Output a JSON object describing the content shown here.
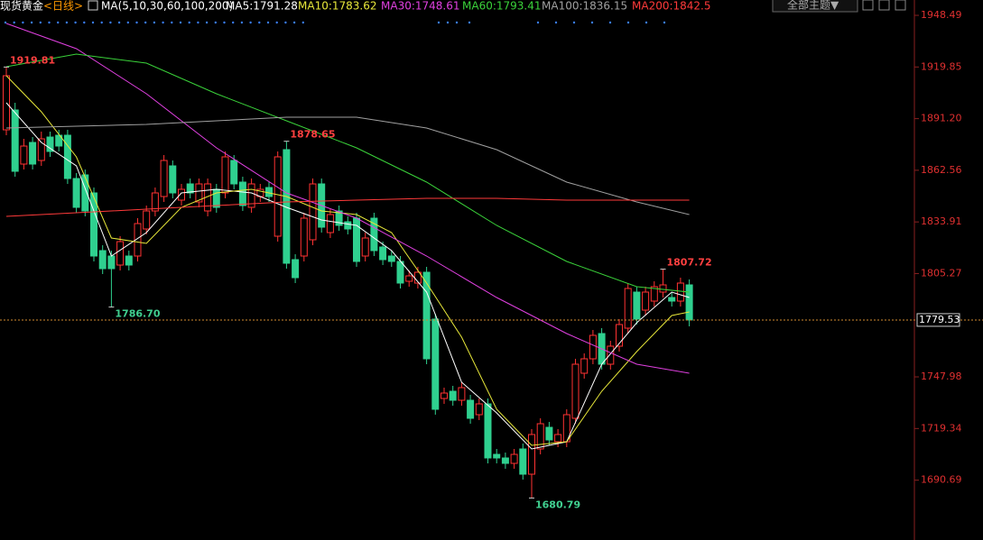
{
  "chart_data": {
    "type": "candlestick",
    "title": "现货黄金",
    "subtitle": "<日线>",
    "indicator": "MA(5,10,30,60,100,200)",
    "theme_button": "全部主题▼",
    "up_color": "#ff3232",
    "down_color": "#2fd08f",
    "ylim": [
      1662,
      1957
    ],
    "yticks": [
      1948.49,
      1919.85,
      {
        "value": 1891.2,
        "label": "1891.20"
      },
      1862.56,
      1833.91,
      1805.27,
      1747.98,
      1719.34,
      1690.69
    ],
    "open": [
      1885,
      1896,
      1866,
      1878,
      1868,
      1881,
      1882,
      1882,
      1858,
      1860,
      1850,
      1818,
      1815,
      1810,
      1815,
      1815,
      1830,
      1840,
      1848,
      1865,
      1846,
      1855,
      1845,
      1840,
      1852,
      1850,
      1868,
      1856,
      1842,
      1848,
      1853,
      1826,
      1874,
      1813,
      1815,
      1824,
      1855,
      1828,
      1840,
      1834,
      1836,
      1815,
      1836,
      1820,
      1815,
      1812,
      1801,
      1800,
      1806,
      1780,
      1736,
      1740,
      1735,
      1735,
      1727,
      1733,
      1705,
      1703,
      1700,
      1708,
      1694,
      1708,
      1720,
      1712,
      1712,
      1725,
      1750,
      1758,
      1772,
      1755,
      1765,
      1775,
      1795,
      1785,
      1790,
      1795,
      1792,
      1790,
      1799
    ],
    "high": [
      1919.81,
      1900,
      1880,
      1881,
      1884,
      1884,
      1885,
      1885,
      1861,
      1863,
      1853,
      1821,
      1818,
      1826,
      1818,
      1836,
      1843,
      1853,
      1871,
      1868,
      1855,
      1858,
      1858,
      1858,
      1855,
      1873,
      1871,
      1859,
      1858,
      1855,
      1856,
      1873,
      1878.65,
      1816,
      1839,
      1858,
      1858,
      1841,
      1843,
      1837,
      1839,
      1828,
      1839,
      1823,
      1818,
      1815,
      1807,
      1809,
      1809,
      1783,
      1742,
      1743,
      1745,
      1738,
      1736,
      1736,
      1708,
      1706,
      1708,
      1711,
      1719,
      1725,
      1723,
      1719,
      1730,
      1758,
      1761,
      1774,
      1775,
      1768,
      1780,
      1800,
      1798,
      1798,
      1801,
      1807.72,
      1795,
      1803,
      1802
    ],
    "low": [
      1882,
      1859,
      1863,
      1863,
      1865,
      1870,
      1873,
      1855,
      1839,
      1837,
      1812,
      1805,
      1786.7,
      1807,
      1807,
      1812,
      1827,
      1837,
      1845,
      1847,
      1843,
      1847,
      1842,
      1837,
      1839,
      1847,
      1852,
      1840,
      1839,
      1845,
      1845,
      1823,
      1808,
      1800,
      1812,
      1821,
      1828,
      1825,
      1829,
      1827,
      1809,
      1812,
      1815,
      1810,
      1809,
      1797,
      1798,
      1797,
      1755,
      1727,
      1733,
      1732,
      1732,
      1722,
      1724,
      1700,
      1700,
      1697,
      1697,
      1691,
      1680.79,
      1705,
      1710,
      1709,
      1709,
      1722,
      1747,
      1755,
      1752,
      1752,
      1762,
      1772,
      1777,
      1782,
      1787,
      1792,
      1787,
      1787,
      1776
    ],
    "close": [
      1915,
      1862,
      1876,
      1866,
      1880,
      1873,
      1876,
      1858,
      1842,
      1840,
      1815,
      1808,
      1808,
      1823,
      1810,
      1833,
      1840,
      1850,
      1868,
      1850,
      1852,
      1850,
      1855,
      1855,
      1842,
      1870,
      1855,
      1843,
      1855,
      1852,
      1848,
      1870,
      1811,
      1803,
      1836,
      1855,
      1831,
      1838,
      1832,
      1830,
      1812,
      1825,
      1818,
      1813,
      1812,
      1800,
      1804,
      1806,
      1758,
      1730,
      1739,
      1735,
      1742,
      1725,
      1733,
      1703,
      1703,
      1700,
      1705,
      1694,
      1716,
      1722,
      1713,
      1716,
      1727,
      1755,
      1758,
      1771,
      1755,
      1765,
      1777,
      1797,
      1780,
      1795,
      1798,
      1799,
      1790,
      1800,
      1779.53
    ],
    "annotations": {
      "values": [
        1919.81,
        1878.65,
        1786.7,
        1680.79,
        1807.72
      ],
      "value_labels": [
        "1919.81",
        "1878.65",
        "1786.70",
        "1680.79",
        "1807.72"
      ]
    },
    "series": [
      {
        "name": "MA5:1791.28",
        "color": "#ffffff",
        "x": [
          0,
          4,
          8,
          12,
          16,
          20,
          24,
          28,
          32,
          36,
          40,
          44,
          48,
          52,
          56,
          60,
          64,
          68,
          72,
          76,
          78
        ],
        "values": [
          1900,
          1878,
          1865,
          1815,
          1828,
          1850,
          1852,
          1850,
          1842,
          1835,
          1832,
          1818,
          1795,
          1745,
          1728,
          1708,
          1712,
          1755,
          1778,
          1795,
          1792
        ]
      },
      {
        "name": "MA10:1783.62",
        "color": "#e8e83a",
        "x": [
          0,
          4,
          8,
          12,
          16,
          20,
          24,
          28,
          32,
          36,
          40,
          44,
          48,
          52,
          56,
          60,
          64,
          68,
          72,
          76,
          78
        ],
        "values": [
          1915,
          1895,
          1870,
          1825,
          1822,
          1842,
          1850,
          1852,
          1848,
          1840,
          1838,
          1828,
          1800,
          1770,
          1730,
          1710,
          1712,
          1740,
          1762,
          1782,
          1784
        ]
      },
      {
        "name": "MA30:1748.61",
        "color": "#e040e0",
        "x": [
          0,
          8,
          16,
          24,
          32,
          40,
          48,
          56,
          64,
          72,
          78
        ],
        "values": [
          1944,
          1930,
          1905,
          1875,
          1850,
          1836,
          1815,
          1792,
          1772,
          1755,
          1750
        ]
      },
      {
        "name": "MA60:1793.41",
        "color": "#3ad23a",
        "x": [
          0,
          8,
          16,
          24,
          32,
          40,
          48,
          56,
          64,
          72,
          78
        ],
        "values": [
          1920,
          1927,
          1922,
          1905,
          1890,
          1875,
          1856,
          1832,
          1812,
          1798,
          1795
        ]
      },
      {
        "name": "MA100:1836.15",
        "color": "#a0a0a0",
        "x": [
          0,
          8,
          16,
          24,
          32,
          40,
          48,
          56,
          64,
          72,
          78
        ],
        "values": [
          1886,
          1887,
          1888,
          1890,
          1892,
          1892,
          1886,
          1874,
          1856,
          1845,
          1838
        ]
      },
      {
        "name": "MA200:1842.5",
        "color": "#ff3a3a",
        "x": [
          0,
          8,
          16,
          24,
          32,
          40,
          48,
          56,
          64,
          72,
          78
        ],
        "values": [
          1837,
          1839,
          1841,
          1843,
          1845,
          1846,
          1847,
          1847,
          1846,
          1846,
          1846
        ]
      }
    ]
  }
}
